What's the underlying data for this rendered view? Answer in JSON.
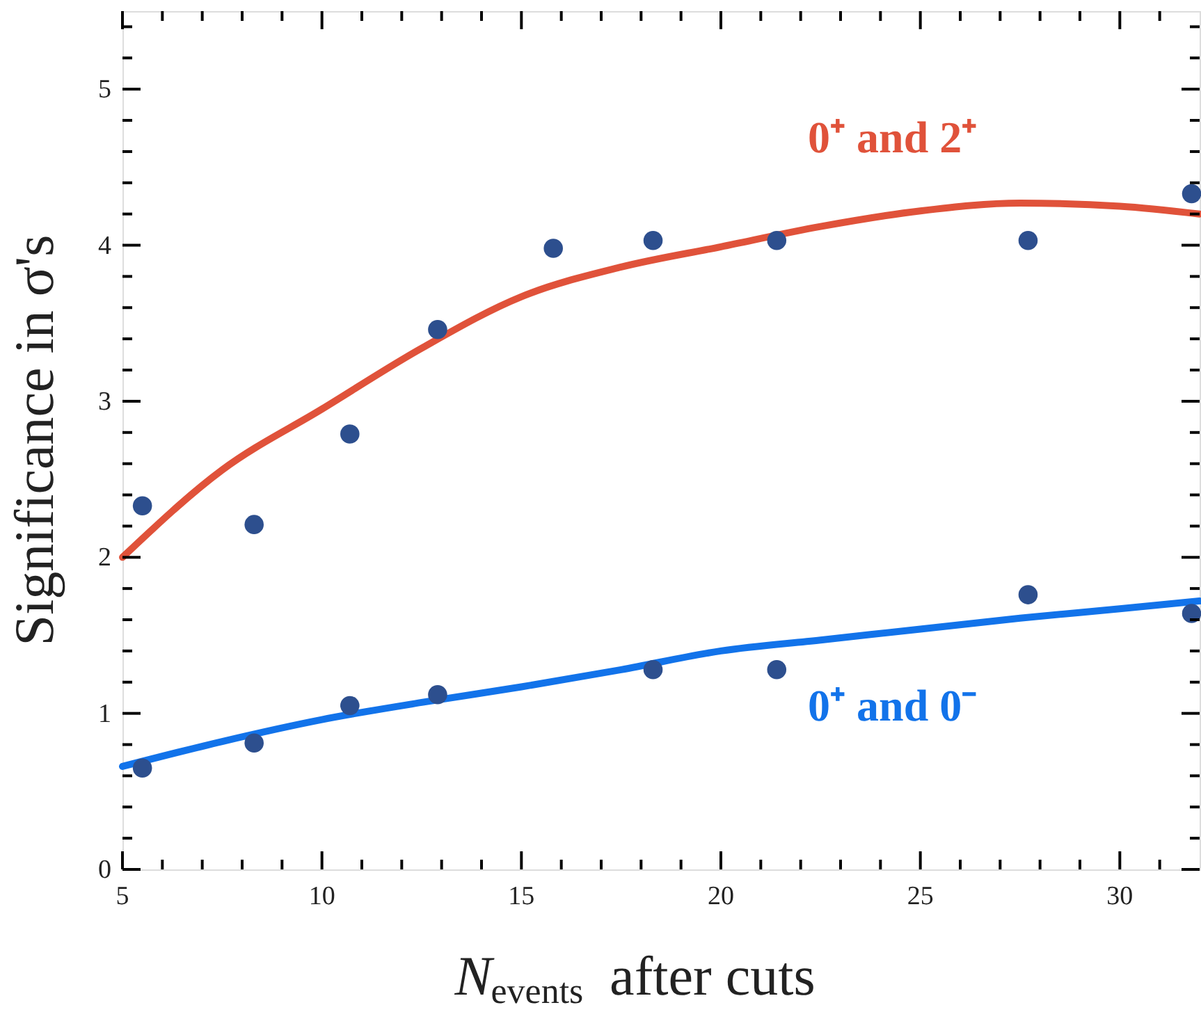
{
  "chart_data": {
    "type": "line",
    "xlabel": "N$_{events}$ after cuts",
    "ylabel": "Significance in σ's",
    "xlim": [
      5,
      32
    ],
    "ylim": [
      0,
      5.5
    ],
    "xticks": [
      5,
      {
        "value": 6,
        "label": null
      },
      {
        "value": 7,
        "label": null
      },
      {
        "value": 8,
        "label": null
      },
      {
        "value": 9,
        "label": null
      },
      10,
      {
        "value": 11,
        "label": null
      },
      {
        "value": 12,
        "label": null
      },
      {
        "value": 13,
        "label": null
      },
      {
        "value": 14,
        "label": null
      },
      15,
      {
        "value": 16,
        "label": null
      },
      {
        "value": 17,
        "label": null
      },
      {
        "value": 18,
        "label": null
      },
      {
        "value": 19,
        "label": null
      },
      20,
      {
        "value": 21,
        "label": null
      },
      {
        "value": 22,
        "label": null
      },
      {
        "value": 23,
        "label": null
      },
      {
        "value": 24,
        "label": null
      },
      25,
      {
        "value": 26,
        "label": null
      },
      {
        "value": 27,
        "label": null
      },
      {
        "value": 28,
        "label": null
      },
      {
        "value": 29,
        "label": null
      },
      30,
      {
        "value": 31,
        "label": null
      }
    ],
    "yticks": [
      0,
      {
        "value": 0.2,
        "label": null
      },
      {
        "value": 0.4,
        "label": null
      },
      {
        "value": 0.6,
        "label": null
      },
      {
        "value": 0.8,
        "label": null
      },
      1,
      {
        "value": 1.2,
        "label": null
      },
      {
        "value": 1.4,
        "label": null
      },
      {
        "value": 1.6,
        "label": null
      },
      {
        "value": 1.8,
        "label": null
      },
      2,
      {
        "value": 2.2,
        "label": null
      },
      {
        "value": 2.4,
        "label": null
      },
      {
        "value": 2.6,
        "label": null
      },
      {
        "value": 2.8,
        "label": null
      },
      3,
      {
        "value": 3.2,
        "label": null
      },
      {
        "value": 3.4,
        "label": null
      },
      {
        "value": 3.6,
        "label": null
      },
      {
        "value": 3.8,
        "label": null
      },
      4,
      {
        "value": 4.2,
        "label": null
      },
      {
        "value": 4.4,
        "label": null
      },
      {
        "value": 4.6,
        "label": null
      },
      {
        "value": 4.8,
        "label": null
      },
      5,
      {
        "value": 5.2,
        "label": null
      },
      {
        "value": 5.4,
        "label": null
      }
    ],
    "grid": false,
    "series": [
      {
        "name": "0⁺ and 2⁺",
        "color": "#e0523a",
        "x": [
          5,
          7.5,
          10,
          12.5,
          15,
          17.5,
          20,
          22.5,
          25,
          27.5,
          30,
          32
        ],
        "values": [
          2.0,
          2.56,
          2.95,
          3.34,
          3.67,
          3.86,
          3.99,
          4.12,
          4.22,
          4.27,
          4.25,
          4.2
        ]
      },
      {
        "type": "scatter",
        "color": "#2d4f8e",
        "marker": "circle",
        "x": [
          5.5,
          8.3,
          10.7,
          12.9,
          15.8,
          18.3,
          21.4,
          27.7,
          31.8
        ],
        "values": [
          2.33,
          2.21,
          2.79,
          3.46,
          3.98,
          4.03,
          4.03,
          4.03,
          4.33
        ]
      },
      {
        "name": "0⁺ and 0⁻",
        "color": "#1273ea",
        "x": [
          5,
          7.5,
          10,
          12.5,
          15,
          17.5,
          20,
          22.5,
          25,
          27.5,
          30,
          32
        ],
        "values": [
          0.66,
          0.82,
          0.96,
          1.07,
          1.17,
          1.28,
          1.4,
          1.47,
          1.54,
          1.61,
          1.67,
          1.72
        ]
      },
      {
        "type": "scatter",
        "color": "#2d4f8e",
        "marker": "circle",
        "x": [
          5.5,
          8.3,
          10.7,
          12.9,
          18.3,
          21.4,
          27.7,
          31.8
        ],
        "values": [
          0.65,
          0.81,
          1.05,
          1.12,
          1.28,
          1.28,
          1.76,
          1.64
        ]
      }
    ]
  }
}
